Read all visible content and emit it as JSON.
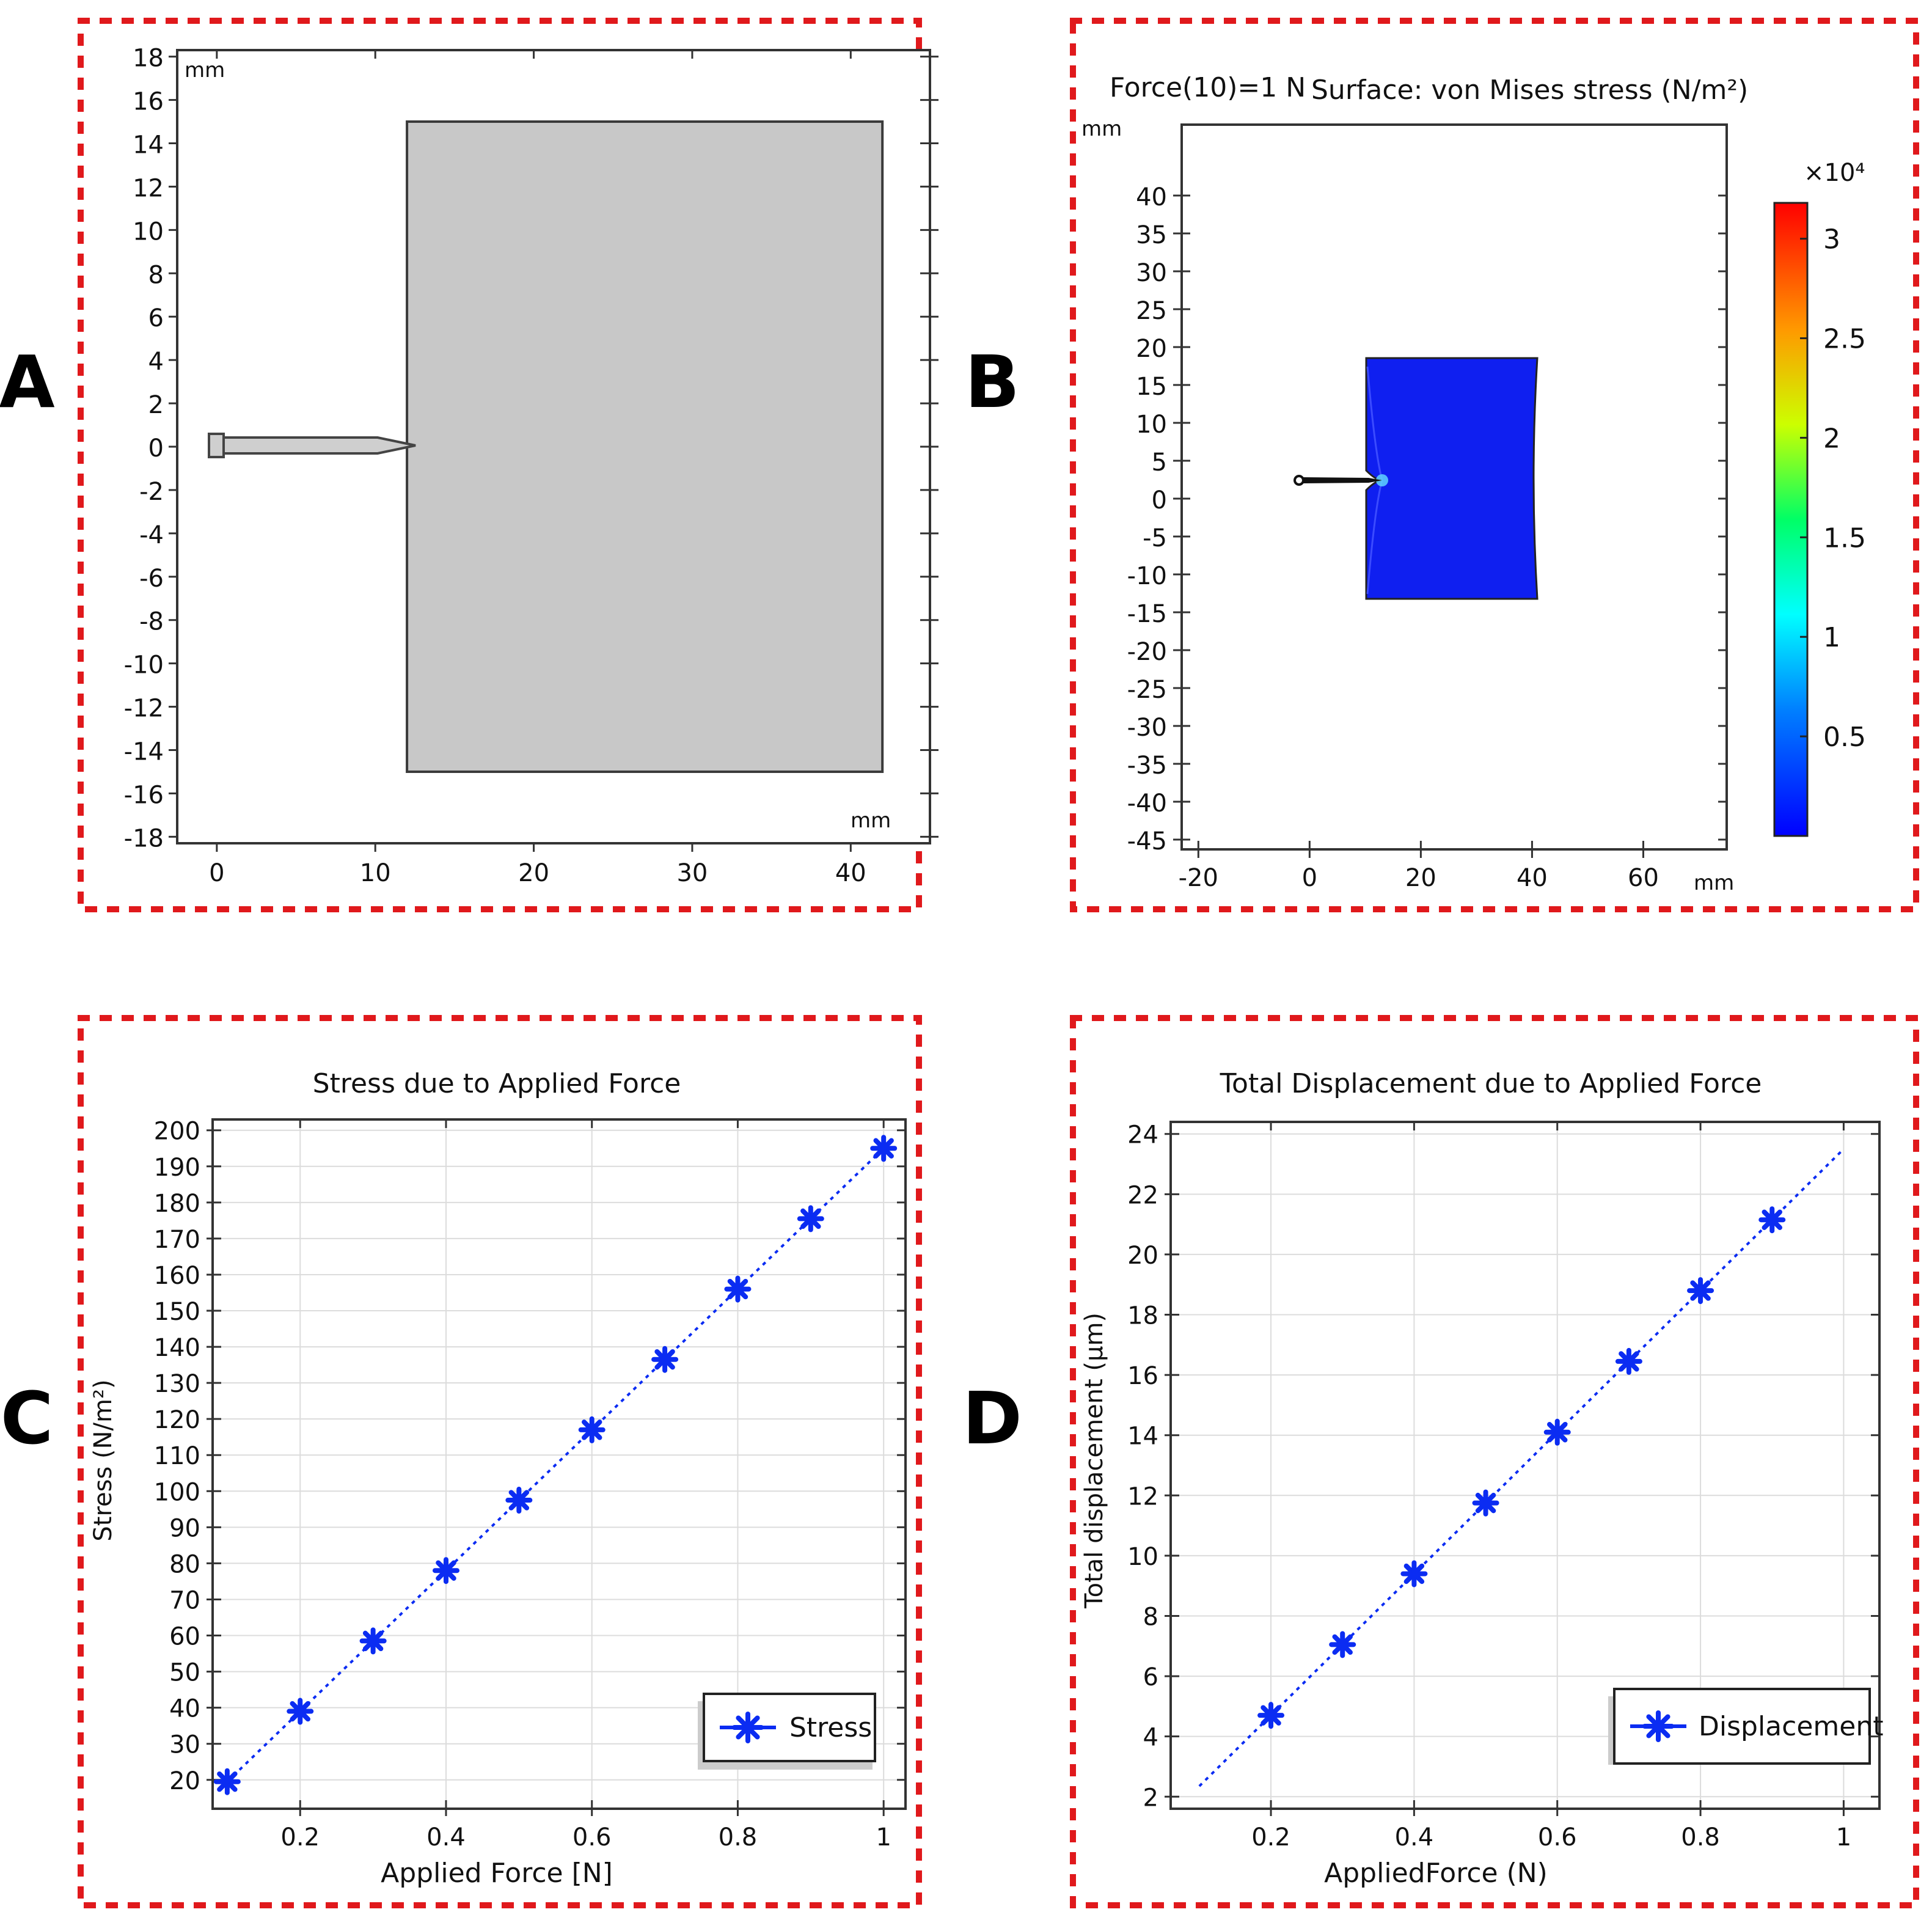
{
  "figure": {
    "border_color": "#e0191c",
    "accent_blue": "#0b2cf2",
    "panel_letters": [
      "A",
      "B",
      "C",
      "D"
    ]
  },
  "panelA": {
    "unit_top": "mm",
    "unit_right": "mm",
    "x_ticks": [
      "0",
      "10",
      "20",
      "30",
      "40"
    ],
    "y_ticks": [
      "18",
      "16",
      "14",
      "12",
      "10",
      "8",
      "6",
      "4",
      "2",
      "0",
      "-2",
      "-4",
      "-6",
      "-8",
      "-10",
      "-12",
      "-14",
      "-16",
      "-18"
    ],
    "xlim": [
      -2.5,
      45
    ],
    "ylim": [
      -18.3,
      18.3
    ],
    "block": {
      "x0": 12,
      "x1": 42,
      "y0": -15,
      "y1": 15,
      "color": "#c8c8c8"
    }
  },
  "panelB": {
    "header": "Force(10)=1 N",
    "title": "Surface: von Mises stress (N/m²)",
    "unit_y": "mm",
    "unit_x": "mm",
    "x_ticks": [
      "-20",
      "0",
      "20",
      "40",
      "60"
    ],
    "y_ticks": [
      "40",
      "35",
      "30",
      "25",
      "20",
      "15",
      "10",
      "5",
      "0",
      "-5",
      "-10",
      "-15",
      "-20",
      "-25",
      "-30",
      "-35",
      "-40",
      "-45"
    ],
    "colorbar_exponent": "×10⁴",
    "colorbar_ticks": [
      "3",
      "2.5",
      "2",
      "1.5",
      "1",
      "0.5"
    ],
    "block_color": "#0f1ff0"
  },
  "chart_data": [
    {
      "id": "C",
      "type": "line",
      "title": "Stress due to Applied Force",
      "xlabel": "Applied Force [N]",
      "ylabel": "Stress (N/m²)",
      "x": [
        0.1,
        0.2,
        0.3,
        0.4,
        0.5,
        0.6,
        0.7,
        0.8,
        0.9,
        1.0
      ],
      "x_ticks": [
        "0.2",
        "0.4",
        "0.6",
        "0.8",
        "1"
      ],
      "y_ticks": [
        "20",
        "30",
        "40",
        "50",
        "60",
        "70",
        "80",
        "90",
        "100",
        "110",
        "120",
        "130",
        "140",
        "150",
        "160",
        "170",
        "180",
        "190",
        "200"
      ],
      "xlim": [
        0.08,
        1.03
      ],
      "ylim": [
        12,
        203
      ],
      "series": [
        {
          "name": "Stress",
          "values": [
            19.5,
            39,
            58.5,
            78,
            97.5,
            117,
            136.5,
            156,
            175.5,
            195
          ]
        }
      ],
      "legend_position": "bottom-right",
      "grid": true
    },
    {
      "id": "D",
      "type": "line",
      "title": "Total Displacement due to Applied Force",
      "xlabel": "AppliedForce (N)",
      "ylabel": "Total displacement (µm)",
      "x": [
        0.2,
        0.3,
        0.4,
        0.5,
        0.6,
        0.7,
        0.8,
        0.9
      ],
      "x_ticks": [
        "0.2",
        "0.4",
        "0.6",
        "0.8",
        "1"
      ],
      "y_ticks": [
        "2",
        "4",
        "6",
        "8",
        "10",
        "12",
        "14",
        "16",
        "18",
        "20",
        "22",
        "24"
      ],
      "xlim": [
        0.06,
        1.05
      ],
      "ylim": [
        1.6,
        24.4
      ],
      "series": [
        {
          "name": "Displacement",
          "values": [
            4.7,
            7.05,
            9.4,
            11.75,
            14.1,
            16.45,
            18.8,
            21.15
          ]
        }
      ],
      "trend_x": [
        0.1,
        1.0
      ],
      "trend_y": [
        2.35,
        23.5
      ],
      "legend_position": "bottom-right",
      "grid": true
    }
  ]
}
